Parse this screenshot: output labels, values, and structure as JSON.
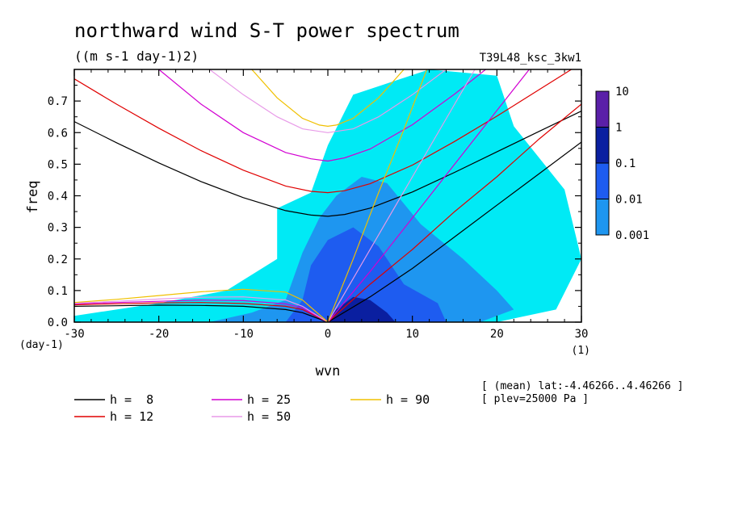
{
  "chart_data": {
    "type": "heatmap",
    "title": "northward wind S-T power spectrum",
    "subtitle": "((m s-1 day-1)2)",
    "run_label": "T39L48_ksc_3kw1",
    "xlabel": "wvn",
    "ylabel": "freq",
    "x_unit": "(1)",
    "y_unit": "(day-1)",
    "xlim": [
      -30,
      30
    ],
    "ylim": [
      0,
      0.8
    ],
    "xticks": [
      -30,
      -20,
      -10,
      0,
      10,
      20,
      30
    ],
    "xtick_labels": [
      "-30",
      "-20",
      "-10",
      "0",
      "10",
      "20",
      "30"
    ],
    "yticks": [
      0,
      0.1,
      0.2,
      0.3,
      0.4,
      0.5,
      0.6,
      0.7
    ],
    "ytick_labels": [
      "0.0",
      "0.1",
      "0.2",
      "0.3",
      "0.4",
      "0.5",
      "0.6",
      "0.7"
    ],
    "colorbar": {
      "levels": [
        "10",
        "1",
        "0.1",
        "0.01",
        "0.001"
      ],
      "colors": [
        "#5a1fa8",
        "#0a1fa0",
        "#1e5cf0",
        "#1e96f0",
        "#00eaf5"
      ]
    },
    "regions": [
      {
        "level": "0.001",
        "polygon": [
          [
            -30,
            0.02
          ],
          [
            -20,
            0.06
          ],
          [
            -12,
            0.1
          ],
          [
            -6,
            0.2
          ],
          [
            -6,
            0.36
          ],
          [
            -2,
            0.41
          ],
          [
            0,
            0.56
          ],
          [
            3,
            0.72
          ],
          [
            12,
            0.8
          ],
          [
            20,
            0.78
          ],
          [
            22,
            0.62
          ],
          [
            28,
            0.42
          ],
          [
            30,
            0.2
          ],
          [
            27,
            0.04
          ],
          [
            20,
            0.0
          ],
          [
            -30,
            0.0
          ]
        ]
      },
      {
        "level": "0.01",
        "polygon": [
          [
            -14,
            0.0
          ],
          [
            -9,
            0.03
          ],
          [
            -5,
            0.07
          ],
          [
            -3,
            0.22
          ],
          [
            -1,
            0.33
          ],
          [
            1,
            0.4
          ],
          [
            4,
            0.46
          ],
          [
            7,
            0.44
          ],
          [
            11,
            0.31
          ],
          [
            16,
            0.2
          ],
          [
            20,
            0.1
          ],
          [
            22,
            0.04
          ],
          [
            18,
            0.0
          ]
        ]
      },
      {
        "level": "0.1",
        "polygon": [
          [
            -5,
            0.0
          ],
          [
            -3,
            0.07
          ],
          [
            -2,
            0.18
          ],
          [
            0,
            0.26
          ],
          [
            3,
            0.3
          ],
          [
            6,
            0.24
          ],
          [
            9,
            0.12
          ],
          [
            13,
            0.06
          ],
          [
            14,
            0.0
          ]
        ]
      },
      {
        "level": "1",
        "polygon": [
          [
            0,
            0.0
          ],
          [
            1,
            0.04
          ],
          [
            3,
            0.08
          ],
          [
            5,
            0.07
          ],
          [
            7,
            0.03
          ],
          [
            8,
            0.0
          ]
        ]
      }
    ],
    "series": [
      {
        "name": "h =  8",
        "color": "#000000",
        "curves": [
          {
            "x": [
              -30,
              -25,
              -20,
              -15,
              -10,
              -5,
              -2,
              0,
              2,
              5,
              10,
              15,
              20,
              25,
              30
            ],
            "y": [
              0.635,
              0.568,
              0.504,
              0.445,
              0.394,
              0.353,
              0.339,
              0.335,
              0.341,
              0.361,
              0.412,
              0.474,
              0.539,
              0.604,
              0.668
            ]
          },
          {
            "x": [
              0,
              5,
              10,
              15,
              20,
              25,
              30
            ],
            "y": [
              0,
              0.08,
              0.17,
              0.27,
              0.37,
              0.47,
              0.57
            ]
          },
          {
            "x": [
              -30,
              -25,
              -20,
              -15,
              -10,
              -5,
              -3,
              0
            ],
            "y": [
              0.05,
              0.052,
              0.054,
              0.053,
              0.05,
              0.04,
              0.03,
              0
            ]
          }
        ]
      },
      {
        "name": "h = 12",
        "color": "#e00000",
        "curves": [
          {
            "x": [
              -30,
              -25,
              -20,
              -15,
              -10,
              -5,
              -2,
              0,
              2,
              5,
              10,
              15,
              20,
              25,
              30
            ],
            "y": [
              0.77,
              0.69,
              0.614,
              0.543,
              0.481,
              0.431,
              0.414,
              0.41,
              0.416,
              0.438,
              0.497,
              0.572,
              0.652,
              0.736,
              0.82
            ]
          },
          {
            "x": [
              0,
              5,
              10,
              15,
              20,
              25,
              30
            ],
            "y": [
              0,
              0.12,
              0.23,
              0.35,
              0.46,
              0.58,
              0.69
            ]
          },
          {
            "x": [
              -30,
              -25,
              -20,
              -15,
              -10,
              -5,
              -3,
              0
            ],
            "y": [
              0.055,
              0.058,
              0.061,
              0.062,
              0.059,
              0.05,
              0.04,
              0
            ]
          }
        ]
      },
      {
        "name": "h = 25",
        "color": "#d200d2",
        "curves": [
          {
            "x": [
              -20,
              -15,
              -10,
              -5,
              -2,
              0,
              2,
              5,
              10,
              15,
              20,
              25
            ],
            "y": [
              0.8,
              0.69,
              0.6,
              0.537,
              0.517,
              0.51,
              0.52,
              0.548,
              0.625,
              0.722,
              0.828,
              0.94
            ]
          },
          {
            "x": [
              0,
              5,
              10,
              15,
              20,
              25,
              30
            ],
            "y": [
              0,
              0.16,
              0.33,
              0.5,
              0.67,
              0.84,
              1.0
            ]
          },
          {
            "x": [
              -30,
              -25,
              -20,
              -15,
              -10,
              -5,
              -3,
              0
            ],
            "y": [
              0.058,
              0.062,
              0.066,
              0.07,
              0.068,
              0.058,
              0.045,
              0
            ]
          }
        ]
      },
      {
        "name": "h = 50",
        "color": "#e89ae8",
        "curves": [
          {
            "x": [
              -14,
              -10,
              -6,
              -3,
              0,
              3,
              6,
              10,
              14
            ],
            "y": [
              0.8,
              0.72,
              0.65,
              0.612,
              0.6,
              0.612,
              0.65,
              0.72,
              0.8
            ]
          },
          {
            "x": [
              0,
              5,
              10,
              15,
              20
            ],
            "y": [
              0,
              0.23,
              0.46,
              0.69,
              0.92
            ]
          },
          {
            "x": [
              -30,
              -25,
              -20,
              -15,
              -10,
              -5,
              -3,
              0
            ],
            "y": [
              0.06,
              0.066,
              0.073,
              0.079,
              0.08,
              0.07,
              0.05,
              0
            ]
          }
        ]
      },
      {
        "name": "h = 90",
        "color": "#f0c000",
        "curves": [
          {
            "x": [
              -9,
              -6,
              -3,
              -1,
              0,
              1,
              3,
              6,
              9
            ],
            "y": [
              0.8,
              0.71,
              0.645,
              0.624,
              0.62,
              0.624,
              0.645,
              0.71,
              0.8
            ]
          },
          {
            "x": [
              0,
              3,
              6,
              9,
              12
            ],
            "y": [
              0,
              0.2,
              0.41,
              0.61,
              0.82
            ]
          },
          {
            "x": [
              -30,
              -25,
              -20,
              -15,
              -10,
              -5,
              -3,
              0
            ],
            "y": [
              0.062,
              0.072,
              0.084,
              0.096,
              0.104,
              0.095,
              0.07,
              0
            ]
          }
        ]
      }
    ]
  },
  "legend": [
    {
      "label": "h =  8",
      "color": "#000000"
    },
    {
      "label": "h = 12",
      "color": "#e00000"
    },
    {
      "label": "h = 25",
      "color": "#d200d2"
    },
    {
      "label": "h = 50",
      "color": "#e89ae8"
    },
    {
      "label": "h = 90",
      "color": "#f0c000"
    }
  ],
  "info": {
    "line1": "[ (mean) lat:-4.46266..4.46266 ]",
    "line2": "[ plev=25000 Pa ]"
  }
}
